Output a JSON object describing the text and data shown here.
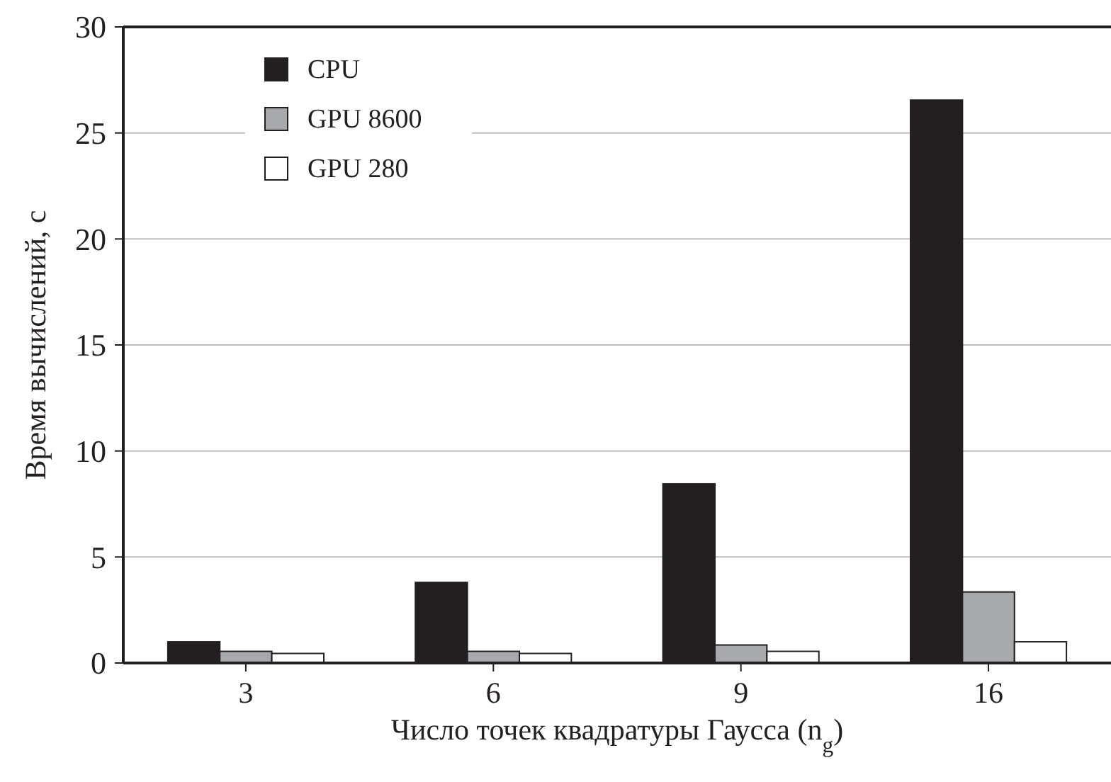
{
  "chart_data": {
    "type": "bar",
    "xlabel": "Число точек квадратуры Гаусса (n$_{g}$)",
    "ylabel": "Время вычислений, с",
    "categories": [
      "3",
      "6",
      "9",
      "16"
    ],
    "series": [
      {
        "name": "CPU",
        "color": "#231f20",
        "values": [
          1.0,
          3.8,
          8.45,
          26.55
        ]
      },
      {
        "name": "GPU 8600",
        "color": "#a7a9ac",
        "values": [
          0.55,
          0.55,
          0.85,
          3.35
        ]
      },
      {
        "name": "GPU 280",
        "color": "#ffffff",
        "values": [
          0.45,
          0.45,
          0.55,
          1.0
        ]
      }
    ],
    "ylim": [
      0,
      30
    ],
    "yticks": [
      0,
      5,
      10,
      15,
      20,
      25,
      30
    ],
    "grid": "y",
    "legend": "top left"
  }
}
